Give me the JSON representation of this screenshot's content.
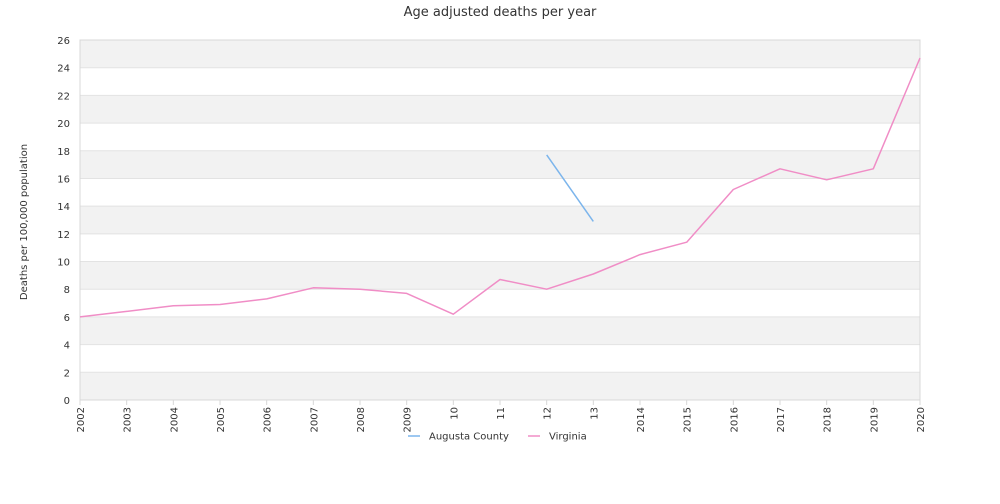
{
  "chart_data": {
    "type": "line",
    "title": "Age adjusted deaths per year",
    "ylabel": "Deaths per 100,000 population",
    "xlabel": "",
    "ylim": [
      0,
      26
    ],
    "yticks": [
      0,
      2,
      4,
      6,
      8,
      10,
      12,
      14,
      16,
      18,
      20,
      22,
      24,
      26
    ],
    "x": [
      "2002",
      "2003",
      "2004",
      "2005",
      "2006",
      "2007",
      "2008",
      "2009",
      "2010",
      "2011",
      "2012",
      "2013",
      "2014",
      "2015",
      "2016",
      "2017",
      "2018",
      "2019",
      "2020"
    ],
    "x_tick_labels": [
      "2002",
      "2003",
      "2004",
      "2005",
      "2006",
      "2007",
      "2008",
      "2009",
      "10",
      "11",
      "12",
      "13",
      "2014",
      "2015",
      "2016",
      "2017",
      "2018",
      "2019",
      "2020"
    ],
    "grid": "horizontal alternating bands",
    "legend_position": "bottom",
    "series": [
      {
        "name": "Augusta County",
        "color": "#7cb5ec",
        "values": [
          null,
          null,
          null,
          null,
          null,
          null,
          null,
          null,
          null,
          null,
          17.7,
          12.9,
          null,
          null,
          null,
          null,
          null,
          null,
          null
        ]
      },
      {
        "name": "Virginia",
        "color": "#f08dc6",
        "values": [
          6.0,
          6.4,
          6.8,
          6.9,
          7.3,
          8.1,
          8.0,
          7.7,
          6.2,
          8.7,
          8.0,
          9.1,
          10.5,
          11.4,
          15.2,
          16.7,
          15.9,
          16.7,
          24.7
        ]
      }
    ]
  }
}
